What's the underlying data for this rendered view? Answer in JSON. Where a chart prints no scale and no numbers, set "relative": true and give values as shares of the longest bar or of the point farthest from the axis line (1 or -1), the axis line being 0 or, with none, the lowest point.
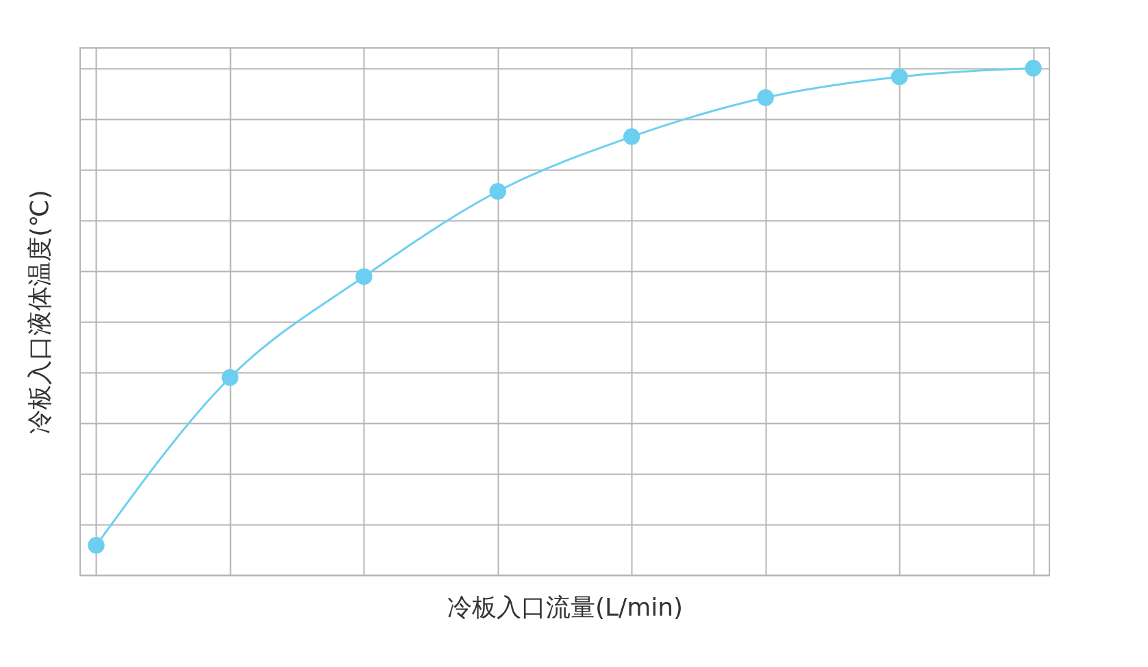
{
  "chart_data": {
    "type": "line",
    "xlabel": "冷板入口流量(L/min)",
    "ylabel": "冷板入口液体温度(℃)",
    "categories": [
      null,
      null,
      null,
      null,
      null,
      null,
      null,
      null
    ],
    "relative": true,
    "grid": true,
    "marker": "circle",
    "series": [
      {
        "color": "#6dcff0",
        "values": [
          0.059,
          0.39,
          0.589,
          0.757,
          0.865,
          0.942,
          0.983,
          1
        ]
      }
    ]
  }
}
